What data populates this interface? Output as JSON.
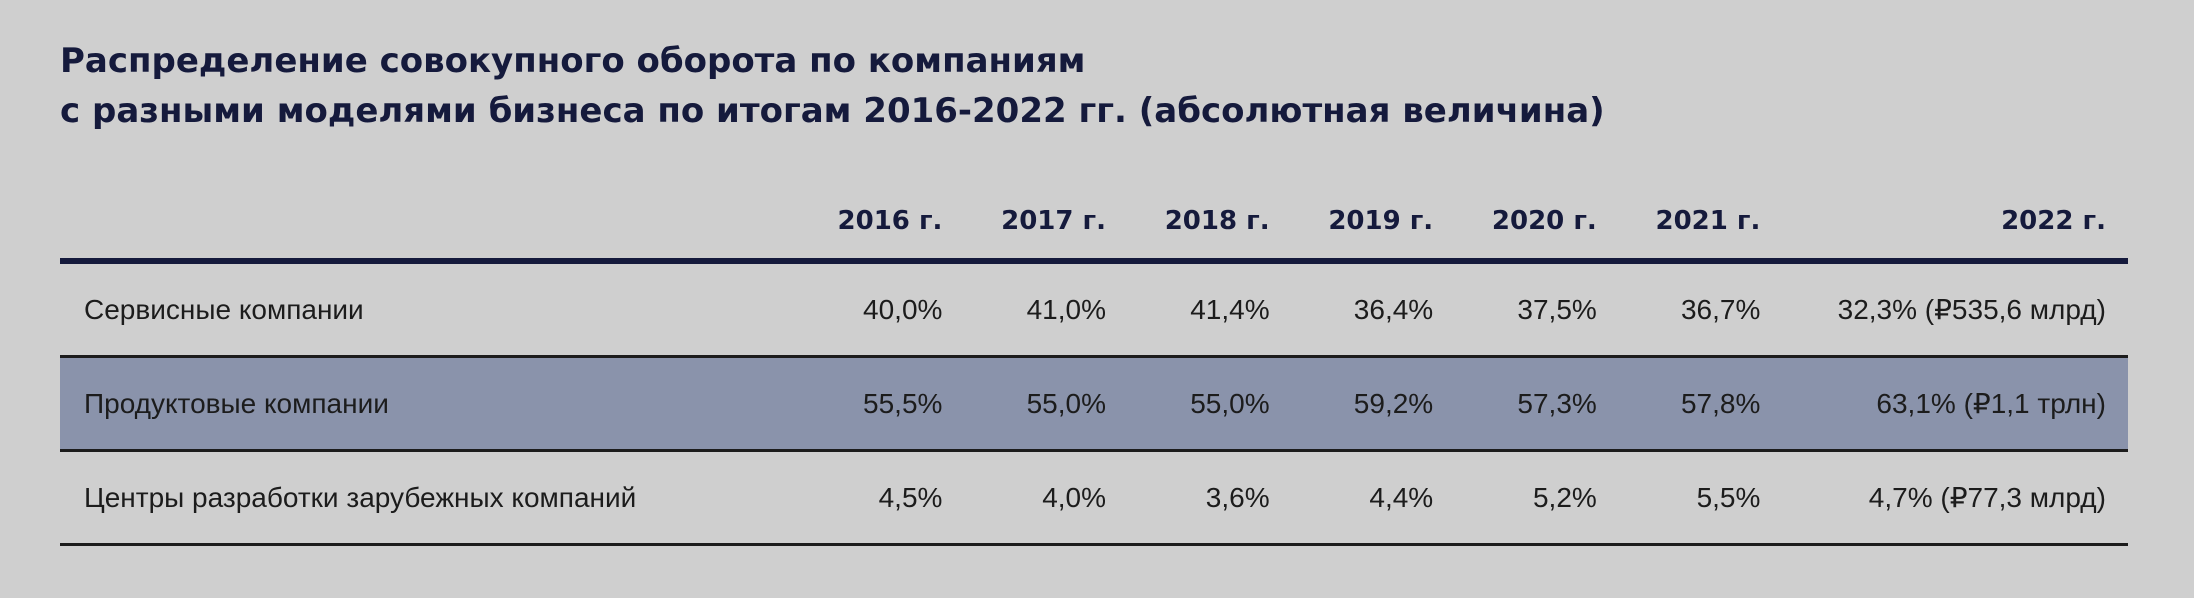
{
  "title": {
    "line1": "Распределение совокупного оборота по компаниям",
    "line2": "с разными моделями бизнеса по итогам 2016-2022 гг. (абсолютная величина)"
  },
  "table": {
    "headers": [
      "",
      "2016 г.",
      "2017 г.",
      "2018 г.",
      "2019 г.",
      "2020 г.",
      "2021 г.",
      "2022 г."
    ],
    "rows": [
      {
        "label": "Сервисные компании",
        "values": [
          "40,0%",
          "41,0%",
          "41,4%",
          "36,4%",
          "37,5%",
          "36,7%",
          "32,3% (₽535,6 млрд)"
        ]
      },
      {
        "label": "Продуктовые компании",
        "values": [
          "55,5%",
          "55,0%",
          "55,0%",
          "59,2%",
          "57,3%",
          "57,8%",
          "63,1% (₽1,1 трлн)"
        ]
      },
      {
        "label": "Центры разработки зарубежных компаний",
        "values": [
          "4,5%",
          "4,0%",
          "3,6%",
          "4,4%",
          "5,2%",
          "5,5%",
          "4,7% (₽77,3 млрд)"
        ]
      }
    ]
  },
  "colors": {
    "background": "#cfcfcf",
    "title": "#151a3c",
    "highlight_row": "#8a93ab",
    "header_rule": "#151a3c",
    "row_rule": "#1c1c1c"
  }
}
